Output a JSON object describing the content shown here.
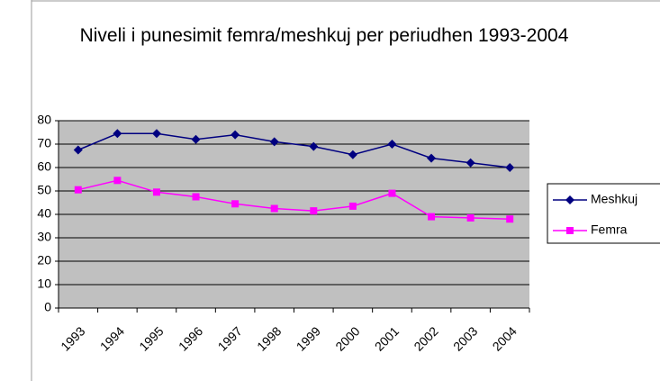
{
  "chart_data": {
    "type": "line",
    "title": "Niveli i punesimit femra/meshkuj per periudhen 1993-2004",
    "categories": [
      "1993",
      "1994",
      "1995",
      "1996",
      "1997",
      "1998",
      "1999",
      "2000",
      "2001",
      "2002",
      "2003",
      "2004"
    ],
    "series": [
      {
        "name": "Meshkuj",
        "color": "#000080",
        "marker": "diamond",
        "values": [
          67.5,
          74.5,
          74.5,
          72,
          74,
          71,
          69,
          65.5,
          70,
          64,
          62,
          60
        ]
      },
      {
        "name": "Femra",
        "color": "#ff00ff",
        "marker": "square",
        "values": [
          50.5,
          54.5,
          49.5,
          47.5,
          44.5,
          42.5,
          41.5,
          43.5,
          49,
          39,
          38.5,
          38
        ]
      }
    ],
    "ylim": [
      0,
      80
    ],
    "yticks": [
      0,
      10,
      20,
      30,
      40,
      50,
      60,
      70,
      80
    ],
    "grid": true,
    "legend": "right"
  }
}
